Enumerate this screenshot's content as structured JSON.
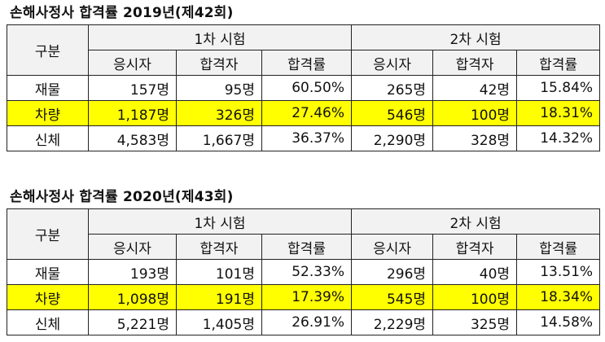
{
  "tables": [
    {
      "title": "손해사정사 합격률 2019년(제42회)",
      "corner_label": "구분",
      "groups": [
        "1차 시험",
        "2차 시험"
      ],
      "columns": [
        "응시자",
        "합격자",
        "합격률",
        "응시자",
        "합격자",
        "합격률"
      ],
      "rows": [
        {
          "label": "재물",
          "values": [
            "157명",
            "95명",
            "60.50%",
            "265명",
            "42명",
            "15.84%"
          ]
        },
        {
          "label": "차량",
          "values": [
            "1,187명",
            "326명",
            "27.46%",
            "546명",
            "100명",
            "18.31%"
          ]
        },
        {
          "label": "신체",
          "values": [
            "4,583명",
            "1,667명",
            "36.37%",
            "2,290명",
            "328명",
            "14.32%"
          ]
        }
      ]
    },
    {
      "title": "손해사정사 합격률 2020년(제43회)",
      "corner_label": "구분",
      "groups": [
        "1차 시험",
        "2차 시험"
      ],
      "columns": [
        "응시자",
        "합격자",
        "합격률",
        "응시자",
        "합격자",
        "합격률"
      ],
      "rows": [
        {
          "label": "재물",
          "values": [
            "193명",
            "101명",
            "52.33%",
            "296명",
            "40명",
            "13.51%"
          ]
        },
        {
          "label": "차량",
          "values": [
            "1,098명",
            "191명",
            "17.39%",
            "545명",
            "100명",
            "18.34%"
          ]
        },
        {
          "label": "신체",
          "values": [
            "5,221명",
            "1,405명",
            "26.91%",
            "2,229명",
            "325명",
            "14.58%"
          ]
        }
      ]
    }
  ],
  "colors": {
    "highlight": "#ffff00",
    "header_bg": "#f2f2f2",
    "border": "#222222"
  },
  "highlighted_row": "차량"
}
